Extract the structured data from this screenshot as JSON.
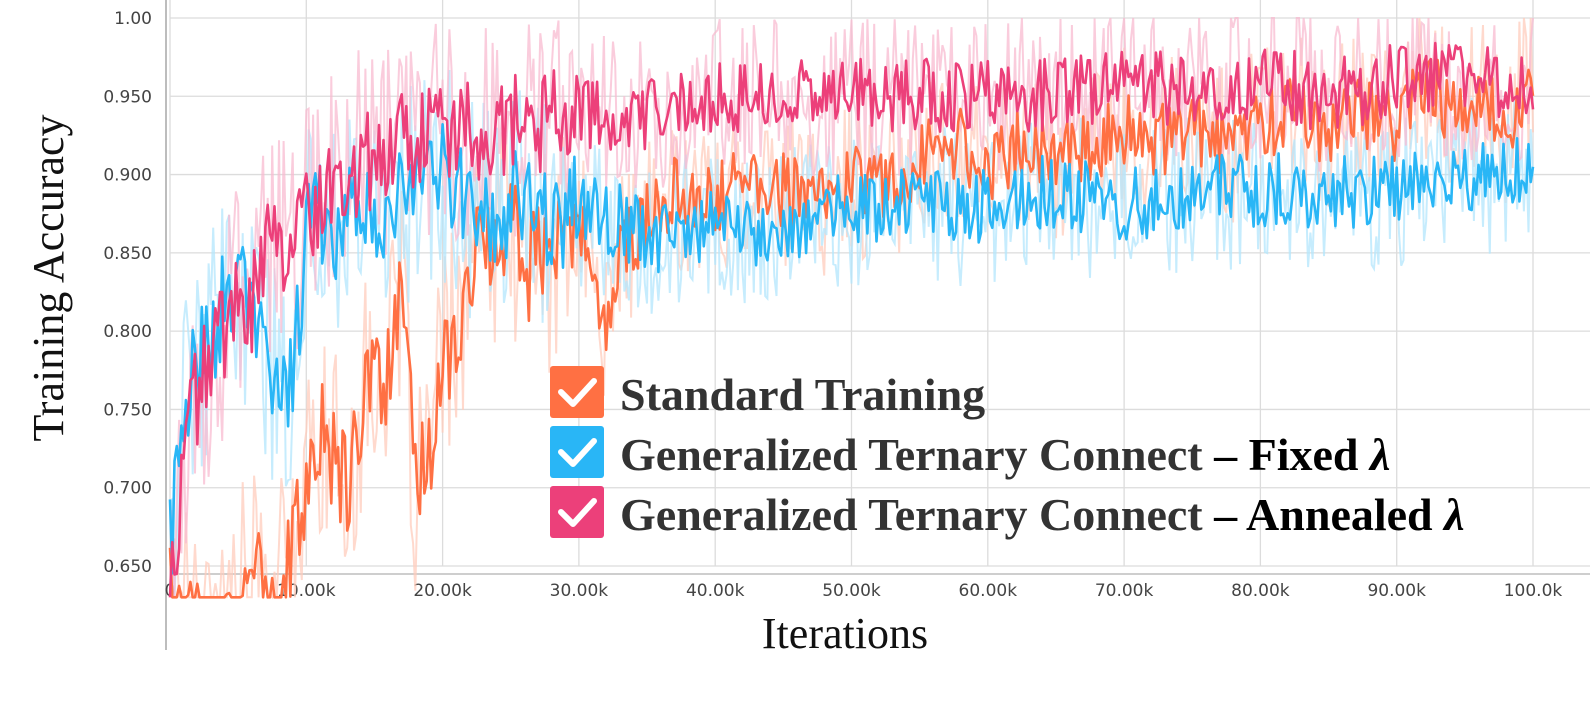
{
  "chart_data": {
    "type": "line",
    "title": "",
    "xlabel": "Iterations",
    "ylabel": "Training Accuracy",
    "xlim": [
      0,
      100000
    ],
    "ylim": [
      0.65,
      1.0
    ],
    "grid": true,
    "legend_position": "center",
    "x_ticks": [
      {
        "value": 0,
        "label": "0"
      },
      {
        "value": 10000,
        "label": "10.00k"
      },
      {
        "value": 20000,
        "label": "20.00k"
      },
      {
        "value": 30000,
        "label": "30.00k"
      },
      {
        "value": 40000,
        "label": "40.00k"
      },
      {
        "value": 50000,
        "label": "50.00k"
      },
      {
        "value": 60000,
        "label": "60.00k"
      },
      {
        "value": 70000,
        "label": "70.00k"
      },
      {
        "value": 80000,
        "label": "80.00k"
      },
      {
        "value": 90000,
        "label": "90.00k"
      },
      {
        "value": 100000,
        "label": "100.0k"
      }
    ],
    "y_ticks": [
      {
        "value": 0.65,
        "label": "0.650"
      },
      {
        "value": 0.7,
        "label": "0.700"
      },
      {
        "value": 0.75,
        "label": "0.750"
      },
      {
        "value": 0.8,
        "label": "0.800"
      },
      {
        "value": 0.85,
        "label": "0.850"
      },
      {
        "value": 0.9,
        "label": "0.900"
      },
      {
        "value": 0.95,
        "label": "0.950"
      },
      {
        "value": 1.0,
        "label": "1.00"
      }
    ],
    "series": [
      {
        "name": "Standard Training",
        "name_suffix": "",
        "color": "#ff7043",
        "raw_color": "#ffccbc",
        "x": [
          0,
          2000,
          4000,
          5000,
          6000,
          8000,
          9000,
          10000,
          11000,
          12000,
          13000,
          14000,
          15000,
          16000,
          17000,
          18000,
          19000,
          20000,
          21000,
          22000,
          23000,
          24000,
          25000,
          26000,
          27000,
          28000,
          29000,
          30000,
          31000,
          32000,
          33000,
          35000,
          37000,
          40000,
          42000,
          45000,
          48000,
          50000,
          52000,
          55000,
          58000,
          60000,
          62000,
          65000,
          68000,
          70000,
          72000,
          75000,
          78000,
          80000,
          82000,
          85000,
          88000,
          90000,
          92000,
          94000,
          96000,
          98000,
          100000
        ],
        "y": [
          0.64,
          0.62,
          0.61,
          0.63,
          0.64,
          0.63,
          0.66,
          0.7,
          0.74,
          0.72,
          0.7,
          0.75,
          0.78,
          0.77,
          0.82,
          0.7,
          0.72,
          0.78,
          0.8,
          0.84,
          0.86,
          0.85,
          0.88,
          0.83,
          0.86,
          0.84,
          0.86,
          0.87,
          0.84,
          0.8,
          0.85,
          0.87,
          0.89,
          0.88,
          0.9,
          0.89,
          0.88,
          0.9,
          0.89,
          0.91,
          0.92,
          0.9,
          0.92,
          0.91,
          0.92,
          0.93,
          0.92,
          0.93,
          0.92,
          0.93,
          0.94,
          0.93,
          0.94,
          0.93,
          0.96,
          0.94,
          0.95,
          0.93,
          0.97
        ]
      },
      {
        "name": "Generalized Ternary Connect",
        "name_suffix": " – Fixed ",
        "name_symbol": "λ",
        "color": "#29b6f6",
        "raw_color": "#b3e5fc",
        "x": [
          0,
          500,
          1000,
          2000,
          3000,
          4000,
          5000,
          6000,
          7000,
          8000,
          9000,
          10000,
          11000,
          12000,
          13000,
          14000,
          15000,
          16000,
          18000,
          20000,
          22000,
          24000,
          26000,
          28000,
          30000,
          33000,
          36000,
          40000,
          43000,
          46000,
          50000,
          55000,
          60000,
          65000,
          70000,
          75000,
          80000,
          85000,
          90000,
          95000,
          100000
        ],
        "y": [
          0.66,
          0.71,
          0.75,
          0.78,
          0.79,
          0.82,
          0.83,
          0.81,
          0.79,
          0.76,
          0.77,
          0.86,
          0.88,
          0.86,
          0.89,
          0.87,
          0.88,
          0.88,
          0.89,
          0.9,
          0.88,
          0.87,
          0.89,
          0.87,
          0.88,
          0.87,
          0.86,
          0.87,
          0.86,
          0.87,
          0.88,
          0.88,
          0.88,
          0.89,
          0.88,
          0.89,
          0.89,
          0.89,
          0.89,
          0.9,
          0.9
        ]
      },
      {
        "name": "Generalized Ternary Connect",
        "name_suffix": " – Annealed ",
        "name_symbol": "λ",
        "color": "#ec407a",
        "raw_color": "#f8bbd0",
        "x": [
          0,
          500,
          1000,
          2000,
          3000,
          4000,
          5000,
          6000,
          7000,
          8000,
          9000,
          10000,
          11000,
          12000,
          13000,
          14000,
          15000,
          17000,
          20000,
          23000,
          26000,
          30000,
          33000,
          36000,
          40000,
          45000,
          50000,
          55000,
          60000,
          65000,
          70000,
          75000,
          80000,
          85000,
          90000,
          95000,
          100000
        ],
        "y": [
          0.64,
          0.66,
          0.73,
          0.76,
          0.78,
          0.8,
          0.83,
          0.82,
          0.85,
          0.86,
          0.85,
          0.87,
          0.89,
          0.9,
          0.9,
          0.91,
          0.91,
          0.92,
          0.93,
          0.93,
          0.93,
          0.94,
          0.94,
          0.94,
          0.95,
          0.95,
          0.95,
          0.95,
          0.95,
          0.95,
          0.96,
          0.95,
          0.96,
          0.95,
          0.96,
          0.96,
          0.96
        ]
      }
    ]
  }
}
